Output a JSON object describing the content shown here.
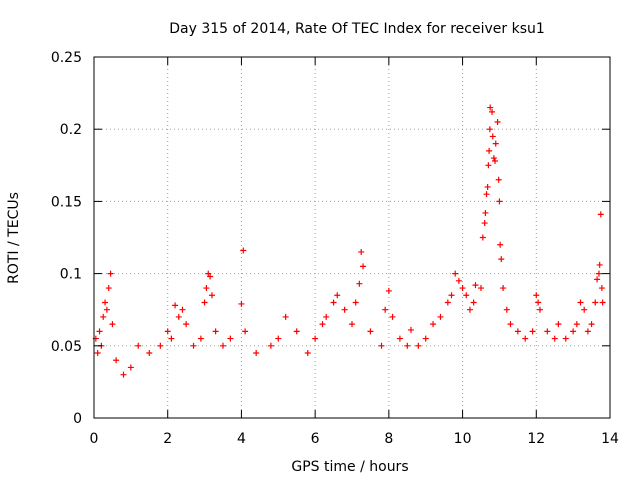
{
  "chart_data": {
    "type": "scatter",
    "title": "Day 315 of 2014, Rate Of TEC Index for receiver ksu1",
    "xlabel": "GPS time / hours",
    "ylabel": "ROTI / TECUs",
    "xlim": [
      0,
      14
    ],
    "ylim": [
      0,
      0.25
    ],
    "x_ticks": [
      0,
      2,
      4,
      6,
      8,
      10,
      12,
      14
    ],
    "x_tick_labels": [
      "0",
      "2",
      "4",
      "6",
      "8",
      "10",
      "12",
      "14"
    ],
    "y_ticks": [
      0,
      0.05,
      0.1,
      0.15,
      0.2,
      0.25
    ],
    "y_tick_labels": [
      "0",
      "0.05",
      "0.1",
      "0.15",
      "0.2",
      "0.25"
    ],
    "grid": true,
    "marker": "+",
    "point_color": "#ff0000",
    "series": [
      {
        "name": "ROTI",
        "points": [
          [
            0.05,
            0.055
          ],
          [
            0.15,
            0.06
          ],
          [
            0.25,
            0.07
          ],
          [
            0.3,
            0.08
          ],
          [
            0.35,
            0.075
          ],
          [
            0.4,
            0.09
          ],
          [
            0.45,
            0.1
          ],
          [
            0.5,
            0.065
          ],
          [
            0.1,
            0.045
          ],
          [
            0.2,
            0.05
          ],
          [
            0.6,
            0.04
          ],
          [
            0.8,
            0.03
          ],
          [
            1.0,
            0.035
          ],
          [
            1.2,
            0.05
          ],
          [
            1.5,
            0.045
          ],
          [
            1.8,
            0.05
          ],
          [
            2.0,
            0.06
          ],
          [
            2.1,
            0.055
          ],
          [
            2.2,
            0.078
          ],
          [
            2.3,
            0.07
          ],
          [
            2.4,
            0.075
          ],
          [
            2.5,
            0.065
          ],
          [
            2.7,
            0.05
          ],
          [
            2.9,
            0.055
          ],
          [
            3.0,
            0.08
          ],
          [
            3.05,
            0.09
          ],
          [
            3.1,
            0.1
          ],
          [
            3.15,
            0.098
          ],
          [
            3.2,
            0.085
          ],
          [
            3.3,
            0.06
          ],
          [
            3.5,
            0.05
          ],
          [
            3.7,
            0.055
          ],
          [
            4.0,
            0.079
          ],
          [
            4.05,
            0.116
          ],
          [
            4.1,
            0.06
          ],
          [
            4.4,
            0.045
          ],
          [
            4.8,
            0.05
          ],
          [
            5.0,
            0.055
          ],
          [
            5.2,
            0.07
          ],
          [
            5.5,
            0.06
          ],
          [
            5.8,
            0.045
          ],
          [
            6.0,
            0.055
          ],
          [
            6.2,
            0.065
          ],
          [
            6.3,
            0.07
          ],
          [
            6.5,
            0.08
          ],
          [
            6.6,
            0.085
          ],
          [
            6.8,
            0.075
          ],
          [
            7.0,
            0.065
          ],
          [
            7.1,
            0.08
          ],
          [
            7.2,
            0.093
          ],
          [
            7.25,
            0.115
          ],
          [
            7.3,
            0.105
          ],
          [
            7.5,
            0.06
          ],
          [
            7.8,
            0.05
          ],
          [
            7.9,
            0.075
          ],
          [
            8.0,
            0.088
          ],
          [
            8.1,
            0.07
          ],
          [
            8.3,
            0.055
          ],
          [
            8.5,
            0.05
          ],
          [
            8.6,
            0.061
          ],
          [
            8.8,
            0.05
          ],
          [
            9.0,
            0.055
          ],
          [
            9.2,
            0.065
          ],
          [
            9.4,
            0.07
          ],
          [
            9.6,
            0.08
          ],
          [
            9.7,
            0.085
          ],
          [
            9.8,
            0.1
          ],
          [
            9.9,
            0.095
          ],
          [
            10.0,
            0.09
          ],
          [
            10.1,
            0.085
          ],
          [
            10.2,
            0.075
          ],
          [
            10.3,
            0.08
          ],
          [
            10.35,
            0.092
          ],
          [
            10.5,
            0.09
          ],
          [
            10.55,
            0.125
          ],
          [
            10.6,
            0.135
          ],
          [
            10.62,
            0.142
          ],
          [
            10.65,
            0.155
          ],
          [
            10.68,
            0.16
          ],
          [
            10.7,
            0.175
          ],
          [
            10.72,
            0.185
          ],
          [
            10.74,
            0.2
          ],
          [
            10.75,
            0.215
          ],
          [
            10.8,
            0.212
          ],
          [
            10.82,
            0.195
          ],
          [
            10.85,
            0.18
          ],
          [
            10.88,
            0.178
          ],
          [
            10.9,
            0.19
          ],
          [
            10.95,
            0.205
          ],
          [
            10.98,
            0.165
          ],
          [
            11.0,
            0.15
          ],
          [
            11.02,
            0.12
          ],
          [
            11.05,
            0.11
          ],
          [
            11.1,
            0.09
          ],
          [
            11.2,
            0.075
          ],
          [
            11.3,
            0.065
          ],
          [
            11.5,
            0.06
          ],
          [
            11.7,
            0.055
          ],
          [
            11.9,
            0.06
          ],
          [
            12.0,
            0.085
          ],
          [
            12.05,
            0.08
          ],
          [
            12.1,
            0.075
          ],
          [
            12.3,
            0.06
          ],
          [
            12.5,
            0.055
          ],
          [
            12.6,
            0.065
          ],
          [
            12.8,
            0.055
          ],
          [
            13.0,
            0.06
          ],
          [
            13.1,
            0.065
          ],
          [
            13.2,
            0.08
          ],
          [
            13.3,
            0.075
          ],
          [
            13.4,
            0.06
          ],
          [
            13.5,
            0.065
          ],
          [
            13.6,
            0.08
          ],
          [
            13.65,
            0.096
          ],
          [
            13.7,
            0.1
          ],
          [
            13.72,
            0.106
          ],
          [
            13.75,
            0.141
          ],
          [
            13.78,
            0.09
          ],
          [
            13.8,
            0.08
          ]
        ]
      }
    ]
  }
}
